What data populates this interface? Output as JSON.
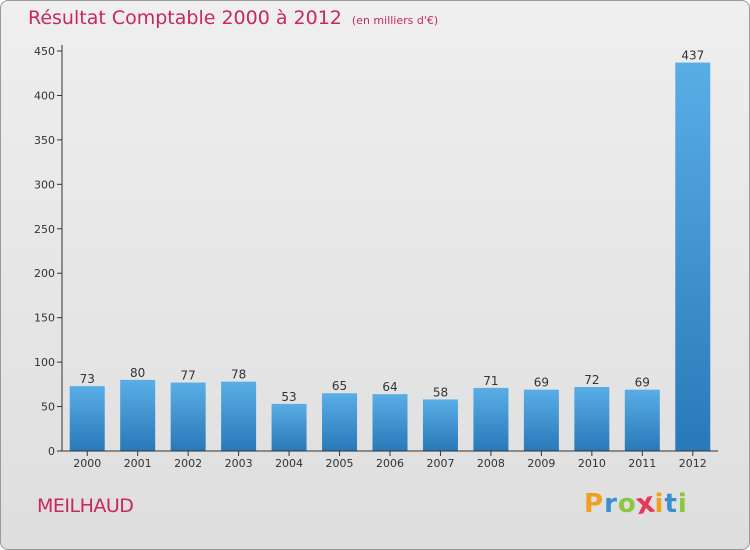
{
  "chart_data": {
    "type": "bar",
    "title": "Résultat Comptable 2000 à 2012",
    "subtitle": "(en milliers d'€)",
    "categories": [
      "2000",
      "2001",
      "2002",
      "2003",
      "2004",
      "2005",
      "2006",
      "2007",
      "2008",
      "2009",
      "2010",
      "2011",
      "2012"
    ],
    "values": [
      73,
      80,
      77,
      78,
      53,
      65,
      64,
      58,
      71,
      69,
      72,
      69,
      437
    ],
    "ylim": [
      0,
      450
    ],
    "yticks": [
      0,
      50,
      100,
      150,
      200,
      250,
      300,
      350,
      400,
      450
    ],
    "xlabel": "",
    "ylabel": "",
    "grid": false,
    "bar_color_light": "#5aaee6",
    "bar_color_dark": "#2879b8"
  },
  "commune": "MEILHAUD",
  "logo": {
    "letters": [
      "P",
      "r",
      "o",
      "x",
      "i",
      "t",
      "i"
    ],
    "colors": [
      "#f0a020",
      "#3a8fd0",
      "#8cc63f",
      "#e8385a",
      "#f0a020",
      "#3a8fd0",
      "#8cc63f"
    ]
  },
  "colors": {
    "accent": "#c8285a"
  }
}
